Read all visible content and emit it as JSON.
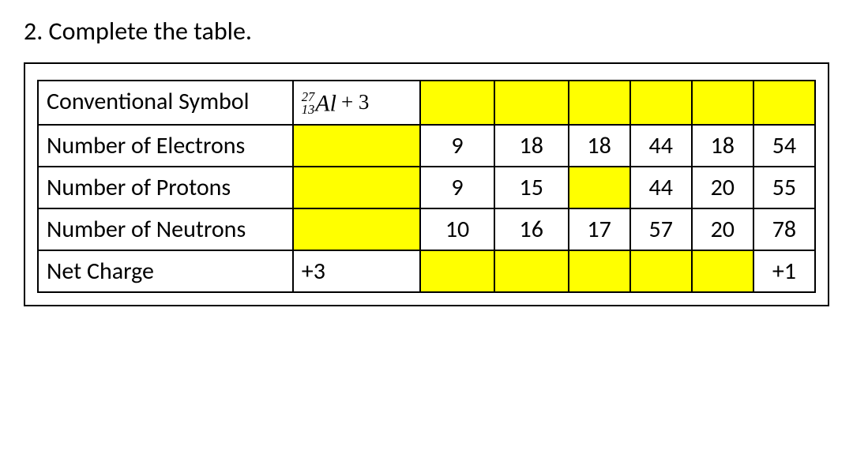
{
  "question": {
    "number": "2.",
    "text": "Complete the table."
  },
  "table": {
    "highlight_color": "#ffff00",
    "border_color": "#000000",
    "font_size_pt": 22,
    "row_labels": [
      "Conventional Symbol",
      "Number of Electrons",
      "Number of Protons",
      "Number of Neutrons",
      "Net Charge"
    ],
    "columns": 7,
    "isotope_symbol": {
      "mass_number": "27",
      "atomic_number": "13",
      "element": "Al",
      "charge_suffix": "+ 3"
    },
    "data": {
      "symbol": [
        {
          "val": "iso",
          "yellow": false
        },
        {
          "val": "",
          "yellow": true
        },
        {
          "val": "",
          "yellow": true
        },
        {
          "val": "",
          "yellow": true
        },
        {
          "val": "",
          "yellow": true
        },
        {
          "val": "",
          "yellow": true
        },
        {
          "val": "",
          "yellow": true
        }
      ],
      "electrons": [
        {
          "val": "",
          "yellow": true
        },
        {
          "val": "9",
          "yellow": false
        },
        {
          "val": "18",
          "yellow": false
        },
        {
          "val": "18",
          "yellow": false
        },
        {
          "val": "44",
          "yellow": false
        },
        {
          "val": "18",
          "yellow": false
        },
        {
          "val": "54",
          "yellow": false
        }
      ],
      "protons": [
        {
          "val": "",
          "yellow": true
        },
        {
          "val": "9",
          "yellow": false
        },
        {
          "val": "15",
          "yellow": false
        },
        {
          "val": "",
          "yellow": true
        },
        {
          "val": "44",
          "yellow": false
        },
        {
          "val": "20",
          "yellow": false
        },
        {
          "val": "55",
          "yellow": false
        }
      ],
      "neutrons": [
        {
          "val": "",
          "yellow": true
        },
        {
          "val": "10",
          "yellow": false
        },
        {
          "val": "16",
          "yellow": false
        },
        {
          "val": "17",
          "yellow": false
        },
        {
          "val": "57",
          "yellow": false
        },
        {
          "val": "20",
          "yellow": false
        },
        {
          "val": "78",
          "yellow": false
        }
      ],
      "charge": [
        {
          "val": "+3",
          "yellow": false
        },
        {
          "val": "",
          "yellow": true
        },
        {
          "val": "",
          "yellow": true
        },
        {
          "val": "",
          "yellow": true
        },
        {
          "val": "",
          "yellow": true
        },
        {
          "val": "",
          "yellow": true
        },
        {
          "val": "+1",
          "yellow": false
        }
      ]
    }
  }
}
